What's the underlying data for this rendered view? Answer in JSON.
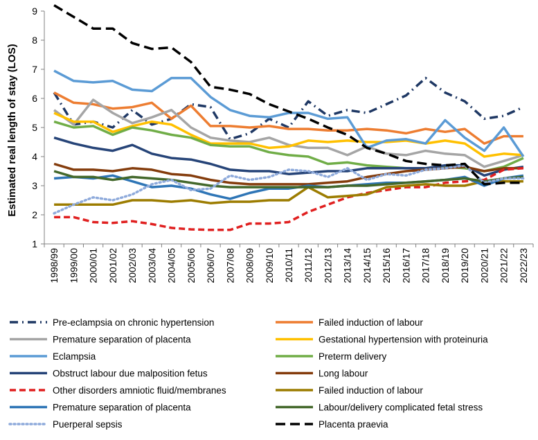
{
  "chart_data": {
    "type": "line",
    "title": "",
    "xlabel": "",
    "ylabel": "Estimated real length of stay (LOS)",
    "ylim": [
      1,
      9
    ],
    "yticks": [
      "1",
      "2",
      "3",
      "4",
      "5",
      "6",
      "7",
      "8",
      "9"
    ],
    "grid": false,
    "legend_position": "bottom",
    "categories": [
      "1998/99",
      "1999/00",
      "2000/01",
      "2001/02",
      "2002/03",
      "2003/04",
      "2004/05",
      "2005/06",
      "2006/07",
      "2007/08",
      "2008/09",
      "2009/10",
      "2010/11",
      "2011/12",
      "2012/13",
      "2013/14",
      "2014/15",
      "2015/16",
      "2016/17",
      "2017/18",
      "2018/19",
      "2019/20",
      "2020/21",
      "2021/22",
      "2022/23"
    ],
    "series": [
      {
        "name": "Pre-eclampsia on chronic hypertension",
        "color": "#1f3864",
        "dash": "dashdot",
        "values": [
          6.2,
          5.1,
          5.2,
          5.0,
          5.6,
          5.1,
          5.3,
          5.8,
          5.7,
          4.6,
          4.8,
          5.3,
          5.0,
          5.9,
          5.4,
          5.6,
          5.5,
          5.8,
          6.1,
          6.7,
          6.2,
          5.9,
          5.3,
          5.4,
          5.7
        ]
      },
      {
        "name": "Failed induction of labour",
        "color": "#ed7d31",
        "dash": "solid",
        "values": [
          6.2,
          5.85,
          5.8,
          5.65,
          5.7,
          5.85,
          5.3,
          5.75,
          5.05,
          5.05,
          5.0,
          5.05,
          4.95,
          4.95,
          4.9,
          4.9,
          4.95,
          4.9,
          4.8,
          4.95,
          4.85,
          4.95,
          4.45,
          4.7,
          4.7
        ]
      },
      {
        "name": "Premature separation of placenta",
        "color": "#a5a5a5",
        "dash": "solid",
        "values": [
          5.6,
          5.1,
          5.95,
          5.5,
          5.15,
          5.35,
          5.6,
          5.0,
          4.65,
          4.55,
          4.5,
          4.65,
          4.4,
          4.3,
          4.3,
          4.05,
          4.35,
          4.1,
          4.05,
          4.2,
          4.1,
          4.05,
          3.65,
          3.85,
          4.05
        ]
      },
      {
        "name": "Gestational hypertension with proteinuria",
        "color": "#ffc000",
        "dash": "solid",
        "values": [
          5.5,
          5.2,
          5.2,
          4.85,
          5.05,
          5.2,
          5.1,
          4.75,
          4.45,
          4.45,
          4.45,
          4.3,
          4.35,
          4.55,
          4.5,
          4.55,
          4.5,
          4.5,
          4.55,
          4.45,
          4.55,
          4.45,
          4.0,
          4.1,
          4.05
        ]
      },
      {
        "name": "Eclampsia",
        "color": "#5b9bd5",
        "dash": "solid",
        "values": [
          6.95,
          6.6,
          6.55,
          6.6,
          6.3,
          6.25,
          6.7,
          6.7,
          6.05,
          5.6,
          5.4,
          5.35,
          5.5,
          5.5,
          5.3,
          5.35,
          4.3,
          4.55,
          4.6,
          4.45,
          5.25,
          4.65,
          4.2,
          5.0,
          4.0
        ]
      },
      {
        "name": "Preterm delivery",
        "color": "#70ad47",
        "dash": "solid",
        "values": [
          5.2,
          5.0,
          5.05,
          4.75,
          5.0,
          4.9,
          4.75,
          4.65,
          4.4,
          4.35,
          4.35,
          4.15,
          4.05,
          4.0,
          3.75,
          3.8,
          3.7,
          3.65,
          3.6,
          3.6,
          3.65,
          3.6,
          3.5,
          3.65,
          3.95
        ]
      },
      {
        "name": "Obstruct labour due malposition fetus",
        "color": "#264478",
        "dash": "solid",
        "values": [
          4.65,
          4.45,
          4.3,
          4.2,
          4.4,
          4.1,
          3.95,
          3.9,
          3.75,
          3.55,
          3.5,
          3.5,
          3.4,
          3.45,
          3.5,
          3.5,
          3.6,
          3.6,
          3.6,
          3.6,
          3.7,
          3.7,
          3.35,
          3.55,
          3.65
        ]
      },
      {
        "name": "Long labour",
        "color": "#843c0c",
        "dash": "solid",
        "values": [
          3.75,
          3.55,
          3.55,
          3.5,
          3.6,
          3.55,
          3.4,
          3.35,
          3.2,
          3.1,
          3.05,
          3.05,
          3.05,
          3.05,
          3.1,
          3.15,
          3.3,
          3.4,
          3.5,
          3.55,
          3.6,
          3.65,
          3.5,
          3.6,
          3.6
        ]
      },
      {
        "name": "Other disorders amniotic fluid/membranes",
        "color": "#e02020",
        "dash": "dash",
        "values": [
          1.92,
          1.92,
          1.75,
          1.72,
          1.78,
          1.68,
          1.55,
          1.5,
          1.48,
          1.48,
          1.7,
          1.7,
          1.75,
          2.1,
          2.35,
          2.6,
          2.75,
          2.85,
          2.95,
          2.95,
          3.1,
          3.15,
          3.2,
          3.55,
          3.6
        ]
      },
      {
        "name": "Failed induction of labour",
        "color": "#9c7c00",
        "dash": "solid",
        "values": [
          2.35,
          2.35,
          2.35,
          2.35,
          2.5,
          2.5,
          2.45,
          2.5,
          2.4,
          2.45,
          2.45,
          2.5,
          2.5,
          2.95,
          2.6,
          2.65,
          2.7,
          2.95,
          3.0,
          3.05,
          3.0,
          3.0,
          3.15,
          3.15,
          3.15
        ]
      },
      {
        "name": "Premature separation of placenta",
        "color": "#2e75b6",
        "dash": "solid",
        "values": [
          3.25,
          3.3,
          3.25,
          3.35,
          3.15,
          2.95,
          3.0,
          2.9,
          2.7,
          2.55,
          2.75,
          2.9,
          2.9,
          3.0,
          2.95,
          3.0,
          3.05,
          3.1,
          3.1,
          3.15,
          3.2,
          3.3,
          3.0,
          3.25,
          3.35
        ]
      },
      {
        "name": "Labour/delivery complicated fetal stress",
        "color": "#43682b",
        "dash": "solid",
        "values": [
          3.5,
          3.3,
          3.3,
          3.2,
          3.3,
          3.25,
          3.2,
          3.1,
          3.0,
          2.95,
          2.95,
          2.95,
          2.95,
          2.95,
          2.95,
          3.0,
          3.0,
          3.05,
          3.1,
          3.15,
          3.2,
          3.25,
          3.15,
          3.25,
          3.3
        ]
      },
      {
        "name": "Puerperal sepsis",
        "color": "#8eaadb",
        "dash": "dot",
        "values": [
          2.05,
          2.35,
          2.6,
          2.5,
          2.7,
          3.05,
          3.2,
          2.85,
          2.9,
          3.35,
          3.2,
          3.3,
          3.55,
          3.5,
          3.3,
          3.6,
          3.2,
          3.4,
          3.35,
          3.55,
          3.6,
          3.7,
          3.1,
          3.25,
          3.25
        ]
      },
      {
        "name": "Placenta praevia",
        "color": "#000000",
        "dash": "longdash",
        "values": [
          9.2,
          8.8,
          8.4,
          8.4,
          7.9,
          7.7,
          7.75,
          7.25,
          6.4,
          6.3,
          6.15,
          5.8,
          5.55,
          5.3,
          5.0,
          4.75,
          4.3,
          4.1,
          3.85,
          3.75,
          3.7,
          3.75,
          3.05,
          3.1,
          3.1
        ]
      }
    ]
  }
}
